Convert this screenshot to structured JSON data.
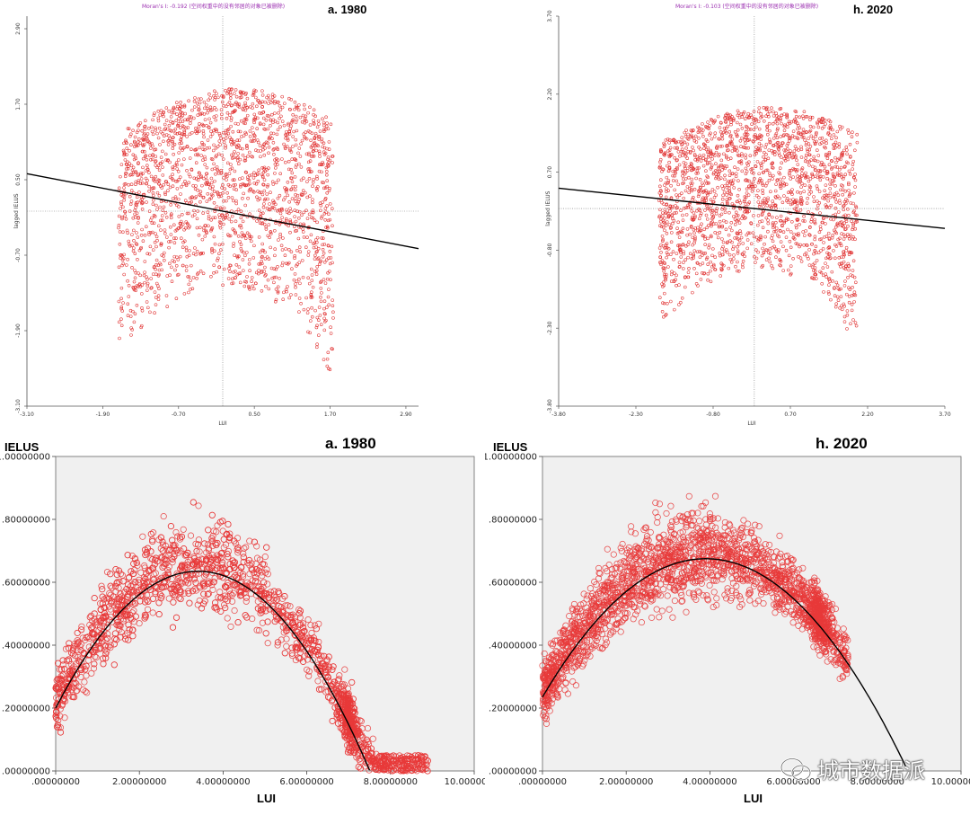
{
  "watermark": "城市数据派",
  "chart_data": [
    {
      "id": "moran-1980",
      "type": "scatter",
      "title": "a. 1980",
      "subtitle": "Moran's I: -0.192 (空间权重中的没有邻居的对象已被删除)",
      "xlabel": "LUI",
      "ylabel": "lagged IELUS",
      "xlim": [
        -3.1,
        3.1
      ],
      "ylim": [
        -3.1,
        3.1
      ],
      "xticks": [
        "-3.10",
        "-1.90",
        "-0.70",
        "0.50",
        "1.70",
        "2.90"
      ],
      "yticks": [
        "2.90",
        "1.70",
        "0.50",
        "-0.70",
        "-1.90",
        "-3.10"
      ],
      "xtick_values": [
        -3.1,
        -1.9,
        -0.7,
        0.5,
        1.7,
        2.9
      ],
      "ytick_values": [
        2.9,
        1.7,
        0.5,
        -0.7,
        -1.9,
        -3.1
      ],
      "slope": -0.192,
      "intercept": 0,
      "colors": {
        "point": "#e03030",
        "line": "#000000"
      },
      "cloud": {
        "x_range": [
          -1.65,
          1.75
        ],
        "count": 1900
      }
    },
    {
      "id": "moran-2020",
      "type": "scatter",
      "title": "h. 2020",
      "subtitle": "Moran's I: -0.103 (空间权重中的没有邻居的对象已被删除)",
      "xlabel": "LUI",
      "ylabel": "lagged IELUS",
      "xlim": [
        -3.8,
        3.7
      ],
      "ylim": [
        -3.8,
        3.7
      ],
      "xticks": [
        "-3.80",
        "-2.30",
        "-0.80",
        "0.70",
        "2.20",
        "3.70"
      ],
      "yticks": [
        "3.70",
        "2.20",
        "0.70",
        "-0.80",
        "-2.30",
        "-3.80"
      ],
      "xtick_values": [
        -3.8,
        -2.3,
        -0.8,
        0.7,
        2.2,
        3.7
      ],
      "ytick_values": [
        3.7,
        2.2,
        0.7,
        -0.8,
        -2.3,
        -3.8
      ],
      "slope": -0.103,
      "intercept": 0,
      "colors": {
        "point": "#e03030",
        "line": "#000000"
      },
      "cloud": {
        "x_range": [
          -1.85,
          2.0
        ],
        "count": 1900
      }
    },
    {
      "id": "fit-1980",
      "type": "scatter",
      "title": "a. 1980",
      "xlabel": "LUI",
      "ylabel": "IELUS",
      "xlim": [
        0,
        10
      ],
      "ylim": [
        0,
        1
      ],
      "xticks": [
        ".00000000",
        "2.00000000",
        "4.00000000",
        "6.00000000",
        "8.00000000",
        "10.00000000"
      ],
      "yticks": [
        "1.00000000",
        ".80000000",
        ".60000000",
        ".40000000",
        ".20000000",
        ".00000000"
      ],
      "xtick_values": [
        0,
        2,
        4,
        6,
        8,
        10
      ],
      "ytick_values": [
        1.0,
        0.8,
        0.6,
        0.4,
        0.2,
        0.0
      ],
      "fit": {
        "type": "quadratic",
        "vertex_x": 3.4,
        "vertex_y": 0.635,
        "intercept": 0.2
      },
      "colors": {
        "point": "#e83a3a",
        "line": "#000000",
        "background": "#f0f0f0"
      },
      "cloud": {
        "x_range": [
          0.0,
          8.9
        ],
        "count": 2300
      }
    },
    {
      "id": "fit-2020",
      "type": "scatter",
      "title": "h. 2020",
      "xlabel": "LUI",
      "ylabel": "IELUS",
      "xlim": [
        0,
        10
      ],
      "ylim": [
        0,
        1
      ],
      "xticks": [
        ".00000000",
        "2.00000000",
        "4.00000000",
        "6.00000000",
        "8.00000000",
        "10.00000000"
      ],
      "yticks": [
        "1.00000000",
        ".80000000",
        ".60000000",
        ".40000000",
        ".20000000",
        ".00000000"
      ],
      "xtick_values": [
        0,
        2,
        4,
        6,
        8,
        10
      ],
      "ytick_values": [
        1.0,
        0.8,
        0.6,
        0.4,
        0.2,
        0.0
      ],
      "fit": {
        "type": "quadratic",
        "vertex_x": 3.9,
        "vertex_y": 0.675,
        "intercept": 0.235
      },
      "colors": {
        "point": "#e83a3a",
        "line": "#000000",
        "background": "#f0f0f0"
      },
      "cloud": {
        "x_range": [
          0.0,
          7.3
        ],
        "count": 2300
      }
    }
  ]
}
